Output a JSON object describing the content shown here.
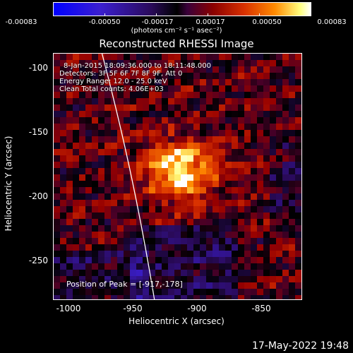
{
  "colorbar": {
    "ticks": [
      "-0.00083",
      "-0.00050",
      "-0.00017",
      "0.00017",
      "0.00050",
      "0.00083"
    ],
    "units_label": "(photons cm⁻² s⁻¹ asec⁻²)"
  },
  "title": "Reconstructed RHESSI Image",
  "annotations": {
    "time": "8-Jan-2015 18:09:36.000 to 18:11:48.000",
    "detectors": "Detectors: 3F 5F 6F 7F 8F 9F, Att 0",
    "energy": "Energy Range: 12.0 - 25.0 keV",
    "clean": "Clean     Total counts: 4.06E+03",
    "peak": "Position of Peak = [-917,-178]"
  },
  "axes": {
    "ylabel": "Heliocentric Y (arcsec)",
    "xlabel": "Heliocentric X (arcsec)",
    "yticks": [
      "-100",
      "-150",
      "-200",
      "-250"
    ],
    "xticks": [
      "-1000",
      "-950",
      "-900",
      "-850"
    ]
  },
  "footer": {
    "date_stamp": "17-May-2022 19:48"
  },
  "image": {
    "xlim": [
      -1012,
      -820
    ],
    "ylim": [
      -281,
      -90
    ],
    "peak_x": -917,
    "peak_y": -178,
    "colormap": [
      "#0000ff",
      "#2a0a5a",
      "#000000",
      "#8a0000",
      "#ff8a00",
      "#ffffff"
    ]
  }
}
